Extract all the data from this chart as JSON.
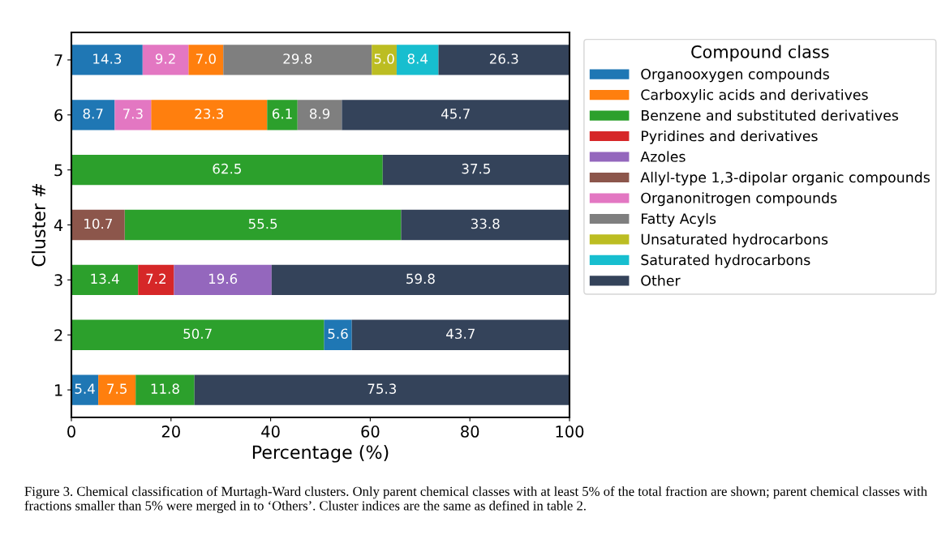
{
  "chart_data": {
    "type": "bar",
    "orientation": "horizontal",
    "categories": [
      "7",
      "6",
      "5",
      "4",
      "3",
      "2",
      "1"
    ],
    "xlabel": "Percentage (%)",
    "ylabel": "Cluster #",
    "legend_title": "Compound class",
    "xlim": [
      0,
      100
    ],
    "xticks": [
      0,
      20,
      40,
      60,
      80,
      100
    ],
    "grid": false,
    "legend": "right",
    "data_labels": true,
    "series": [
      {
        "name": "Organooxygen compounds",
        "color": "#1f77b4",
        "values": [
          14.3,
          8.7,
          null,
          null,
          null,
          5.6,
          5.4
        ],
        "base": [
          null,
          null,
          null,
          null,
          null,
          50.7,
          null
        ]
      },
      {
        "name": "Carboxylic acids and derivatives",
        "color": "#ff7f0e",
        "values": [
          7.0,
          23.3,
          null,
          null,
          null,
          null,
          7.5
        ],
        "value_labels": [
          "7.0",
          "23.3",
          null,
          null,
          null,
          null,
          "7.5"
        ],
        "base": [
          23.5,
          16.0,
          null,
          null,
          null,
          null,
          5.4
        ]
      },
      {
        "name": "Benzene and substituted derivatives",
        "color": "#2ca02c",
        "values": [
          null,
          6.1,
          62.5,
          55.5,
          13.4,
          50.7,
          11.8
        ],
        "base": [
          null,
          39.3,
          null,
          10.7,
          null,
          null,
          12.9
        ]
      },
      {
        "name": "Pyridines and derivatives",
        "color": "#d62728",
        "values": [
          null,
          null,
          null,
          null,
          7.2,
          null,
          null
        ],
        "base": [
          null,
          null,
          null,
          null,
          13.4,
          null,
          null
        ]
      },
      {
        "name": "Azoles",
        "color": "#9467bd",
        "values": [
          null,
          null,
          null,
          null,
          19.6,
          null,
          null
        ],
        "base": [
          null,
          null,
          null,
          null,
          20.6,
          null,
          null
        ]
      },
      {
        "name": "Allyl-type 1,3-dipolar organic compounds",
        "color": "#8c564b",
        "values": [
          null,
          null,
          null,
          10.7,
          null,
          null,
          null
        ],
        "base": [
          null,
          null,
          null,
          null,
          null,
          null,
          null
        ]
      },
      {
        "name": "Organonitrogen compounds",
        "color": "#e377c2",
        "values": [
          9.2,
          7.3,
          null,
          null,
          null,
          null,
          null
        ],
        "base": [
          14.3,
          8.7,
          null,
          null,
          null,
          null,
          null
        ]
      },
      {
        "name": "Fatty Acyls",
        "color": "#7f7f7f",
        "values": [
          29.8,
          8.9,
          null,
          null,
          null,
          null,
          null
        ],
        "base": [
          30.5,
          45.4,
          null,
          null,
          null,
          null,
          null
        ]
      },
      {
        "name": "Unsaturated hydrocarbons",
        "color": "#bcbd22",
        "values": [
          5.0,
          null,
          null,
          null,
          null,
          null,
          null
        ],
        "value_labels": [
          "5.0",
          null,
          null,
          null,
          null,
          null,
          null
        ],
        "base": [
          60.3,
          null,
          null,
          null,
          null,
          null,
          null
        ]
      },
      {
        "name": "Saturated hydrocarbons",
        "color": "#17becf",
        "values": [
          8.4,
          null,
          null,
          null,
          null,
          null,
          null
        ],
        "base": [
          65.3,
          null,
          null,
          null,
          null,
          null,
          null
        ]
      },
      {
        "name": "Other",
        "color": "#34435a",
        "values": [
          26.3,
          45.7,
          37.5,
          33.8,
          59.8,
          43.7,
          75.3
        ],
        "base": [
          73.7,
          54.3,
          62.5,
          66.2,
          40.2,
          56.3,
          24.7
        ]
      }
    ],
    "annotations": [
      "Figure 3. Chemical classification of Murtagh-Ward clusters. Only parent chemical classes with at least 5% of the total fraction are shown; parent chemical classes with fractions smaller than 5% were merged in to ‘Others’. Cluster indices are the same as defined in table 2."
    ]
  }
}
